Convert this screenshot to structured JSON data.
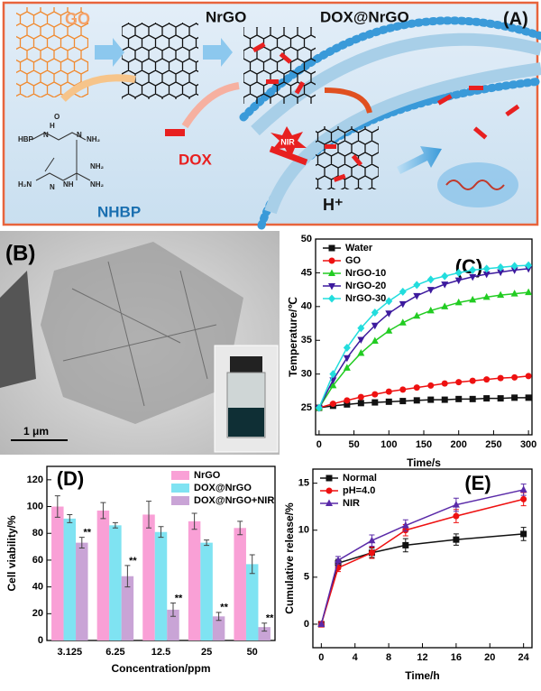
{
  "panel_a": {
    "label": "(A)",
    "go": "GO",
    "nrgo": "NrGO",
    "dox_nrgo": "DOX@NrGO",
    "dox": "DOX",
    "nir": "NIR",
    "proton": "H⁺",
    "nhbp": "NHBP",
    "structure_labels": [
      "HBP",
      "H",
      "N",
      "NH₂",
      "O",
      "N",
      "NH₂",
      "NH",
      "H₂N",
      "N",
      "NH₂"
    ]
  },
  "panel_b": {
    "label": "(B)",
    "scale_bar": "1 μm"
  },
  "chart_data": [
    {
      "type": "line",
      "panel_label": "(C)",
      "x_label": "Time/s",
      "y_label": "Temperature/℃",
      "legend": "upper left",
      "x": [
        0,
        20,
        40,
        60,
        80,
        100,
        120,
        140,
        160,
        180,
        200,
        220,
        240,
        260,
        280,
        300
      ],
      "xlim": [
        -5,
        305
      ],
      "xticks": [
        0,
        50,
        100,
        150,
        200,
        250,
        300
      ],
      "ylim": [
        21,
        50
      ],
      "yticks": [
        25,
        30,
        35,
        40,
        45,
        50
      ],
      "series": [
        {
          "name": "Water",
          "color": "#111111",
          "marker": "square",
          "values": [
            25,
            25.3,
            25.5,
            25.7,
            25.8,
            25.9,
            26,
            26.1,
            26.2,
            26.2,
            26.3,
            26.3,
            26.4,
            26.4,
            26.5,
            26.5
          ]
        },
        {
          "name": "GO",
          "color": "#ee1111",
          "marker": "circle",
          "values": [
            25,
            25.6,
            26.1,
            26.6,
            27,
            27.4,
            27.7,
            28,
            28.3,
            28.6,
            28.8,
            29,
            29.2,
            29.4,
            29.5,
            29.7
          ]
        },
        {
          "name": "NrGO-10",
          "color": "#22cc22",
          "marker": "triangle-up",
          "values": [
            25,
            28.3,
            30.9,
            33.1,
            34.9,
            36.4,
            37.6,
            38.6,
            39.4,
            40,
            40.6,
            41,
            41.4,
            41.7,
            41.9,
            42.1
          ]
        },
        {
          "name": "NrGO-20",
          "color": "#3d1a9e",
          "marker": "triangle-down",
          "values": [
            25,
            29.1,
            32.4,
            35.1,
            37.2,
            39,
            40.4,
            41.6,
            42.5,
            43.3,
            43.9,
            44.4,
            44.8,
            45.1,
            45.4,
            45.6
          ]
        },
        {
          "name": "NrGO-30",
          "color": "#22dddd",
          "marker": "diamond",
          "values": [
            25,
            30,
            33.9,
            36.8,
            39.1,
            40.8,
            42.2,
            43.2,
            44,
            44.5,
            45,
            45.4,
            45.6,
            45.8,
            46,
            46.1
          ]
        }
      ]
    },
    {
      "type": "bar",
      "panel_label": "(D)",
      "x_label": "Concentration/ppm",
      "y_label": "Cell viability/%",
      "legend": "upper right",
      "categories": [
        "3.125",
        "6.25",
        "12.5",
        "25",
        "50"
      ],
      "ylim": [
        0,
        130
      ],
      "yticks": [
        0,
        20,
        40,
        60,
        80,
        100,
        120
      ],
      "annotations": [
        "**",
        "**",
        "**",
        "**",
        "**"
      ],
      "series": [
        {
          "name": "NrGO",
          "color": "#f9a0d6",
          "values": [
            100,
            97,
            94,
            89,
            84
          ],
          "errors": [
            8,
            6,
            10,
            6,
            5
          ]
        },
        {
          "name": "DOX@NrGO",
          "color": "#7fe3f2",
          "values": [
            91,
            86,
            81,
            73,
            57
          ],
          "errors": [
            3,
            2,
            4,
            2,
            7
          ]
        },
        {
          "name": "DOX@NrGO+NIR",
          "color": "#c9a4d6",
          "values": [
            73,
            48,
            23,
            18,
            10
          ],
          "errors": [
            4,
            8,
            5,
            3,
            3
          ]
        }
      ]
    },
    {
      "type": "line",
      "panel_label": "(E)",
      "x_label": "Time/h",
      "y_label": "Cumulative release/%",
      "legend": "upper left",
      "x": [
        0,
        2,
        6,
        10,
        16,
        24
      ],
      "xlim": [
        -1,
        25
      ],
      "xticks": [
        0,
        4,
        8,
        12,
        16,
        20,
        24
      ],
      "ylim": [
        -2.5,
        16.5
      ],
      "yticks": [
        0,
        5,
        10,
        15
      ],
      "series": [
        {
          "name": "Normal",
          "color": "#111111",
          "marker": "square",
          "values": [
            0,
            6.5,
            7.6,
            8.4,
            9,
            9.6
          ],
          "errors": [
            0.1,
            0.4,
            0.5,
            0.7,
            0.6,
            0.7
          ]
        },
        {
          "name": "pH=4.0",
          "color": "#ee1111",
          "marker": "circle",
          "values": [
            0,
            6,
            7.6,
            10,
            11.5,
            13.3
          ],
          "errors": [
            0.3,
            0.4,
            0.6,
            0.6,
            0.7,
            0.7
          ]
        },
        {
          "name": "NIR",
          "color": "#5a2aa8",
          "marker": "triangle-up",
          "values": [
            0,
            6.8,
            8.9,
            10.5,
            12.7,
            14.3
          ],
          "errors": [
            0.1,
            0.4,
            0.6,
            0.6,
            0.7,
            0.6
          ]
        }
      ]
    }
  ]
}
